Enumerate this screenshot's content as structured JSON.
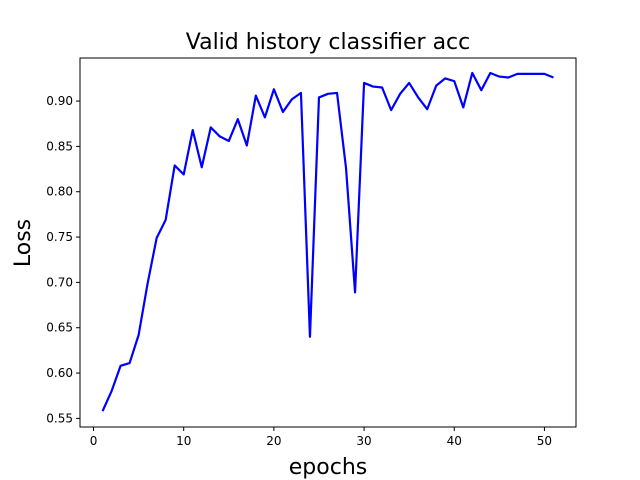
{
  "chart_data": {
    "type": "line",
    "title": "Valid history classifier  acc",
    "xlabel": "epochs",
    "ylabel": "Loss",
    "xlim": [
      -1.5,
      53.5
    ],
    "ylim": [
      0.5405,
      0.9475
    ],
    "grid": false,
    "line_color": "#0000ff",
    "x_ticks": [
      {
        "value": 0,
        "label": "0"
      },
      {
        "value": 10,
        "label": "10"
      },
      {
        "value": 20,
        "label": "20"
      },
      {
        "value": 30,
        "label": "30"
      },
      {
        "value": 40,
        "label": "40"
      },
      {
        "value": 50,
        "label": "50"
      }
    ],
    "y_ticks": [
      {
        "value": 0.55,
        "label": "0.55"
      },
      {
        "value": 0.6,
        "label": "0.60"
      },
      {
        "value": 0.65,
        "label": "0.65"
      },
      {
        "value": 0.7,
        "label": "0.70"
      },
      {
        "value": 0.75,
        "label": "0.75"
      },
      {
        "value": 0.8,
        "label": "0.80"
      },
      {
        "value": 0.85,
        "label": "0.85"
      },
      {
        "value": 0.9,
        "label": "0.90"
      }
    ],
    "series": [
      {
        "x": [
          1,
          2,
          3,
          4,
          5,
          6,
          7,
          8,
          9,
          10,
          11,
          12,
          13,
          14,
          15,
          16,
          17,
          18,
          19,
          20,
          21,
          22,
          23,
          24,
          25,
          26,
          27,
          28,
          29,
          30,
          31,
          32,
          33,
          34,
          35,
          36,
          37,
          38,
          39,
          40,
          41,
          42,
          43,
          44,
          45,
          46,
          47,
          48,
          49,
          50,
          51
        ],
        "values": [
          0.558,
          0.58,
          0.608,
          0.611,
          0.642,
          0.699,
          0.749,
          0.769,
          0.829,
          0.819,
          0.868,
          0.827,
          0.871,
          0.861,
          0.856,
          0.88,
          0.851,
          0.906,
          0.882,
          0.913,
          0.888,
          0.902,
          0.909,
          0.64,
          0.904,
          0.908,
          0.909,
          0.826,
          0.689,
          0.92,
          0.916,
          0.915,
          0.89,
          0.908,
          0.92,
          0.904,
          0.891,
          0.917,
          0.925,
          0.922,
          0.893,
          0.931,
          0.912,
          0.931,
          0.927,
          0.926,
          0.93,
          0.93,
          0.93,
          0.93,
          0.926
        ]
      }
    ]
  }
}
